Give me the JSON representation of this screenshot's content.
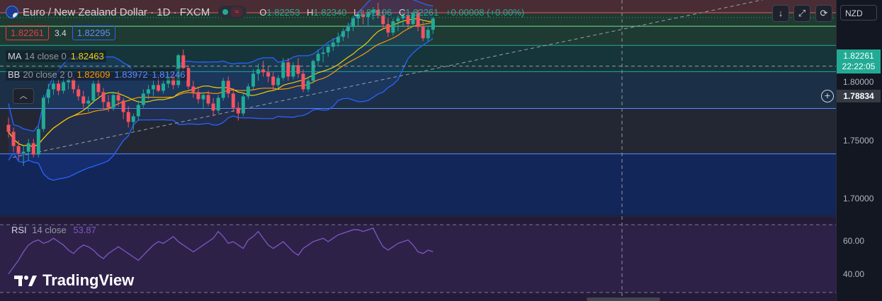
{
  "header": {
    "symbol_title": "Euro / New Zealand Dollar · 1D · FXCM",
    "ohlc": {
      "o_label": "O",
      "o": "1.82253",
      "h_label": "H",
      "h": "1.82340",
      "l_label": "L",
      "l": "1.82106",
      "c_label": "C",
      "c": "1.82261",
      "change": "+0.00008 (+0.00%)"
    },
    "sell_price": "1.82261",
    "spread": "3.4",
    "buy_price": "1.82295",
    "market_status_icon": "market-open-dot-icon",
    "replay_icon": "replay-icon"
  },
  "indicators": {
    "ma": {
      "name": "MA",
      "params": "14 close 0",
      "value": "1.82463"
    },
    "bb": {
      "name": "BB",
      "params": "20 close 2 0",
      "basis": "1.82609",
      "upper": "1.83972",
      "lower": "1.81246"
    },
    "rsi": {
      "name": "RSI",
      "params": "14 close",
      "value": "53.87"
    }
  },
  "right_panel": {
    "currency": "NZD",
    "last_price": "1.82261",
    "countdown": "22:22:05",
    "crosshair_price": "1.78834",
    "price_axis": [
      "1.80000",
      "1.75000",
      "1.70000"
    ],
    "rsi_axis": [
      "60.00",
      "40.00"
    ]
  },
  "toolbar_icons": [
    "down-arrow-icon",
    "fullscreen-icon",
    "screenshot-icon"
  ],
  "brand": "TradingView",
  "colors": {
    "up": "#22ab94",
    "down": "#f7525f",
    "ma": "#f0d000",
    "bb_basis": "#ff9800",
    "bb_band": "#2962ff",
    "rsi": "#7e57c2",
    "bg": "#131722"
  },
  "chart_data": {
    "type": "candlestick",
    "y_range": [
      1.683,
      1.835
    ],
    "ohlc": [
      [
        1.747,
        1.752,
        1.738,
        1.742
      ],
      [
        1.742,
        1.745,
        1.728,
        1.732
      ],
      [
        1.732,
        1.736,
        1.722,
        1.727
      ],
      [
        1.727,
        1.733,
        1.718,
        1.728
      ],
      [
        1.728,
        1.737,
        1.722,
        1.734
      ],
      [
        1.734,
        1.737,
        1.724,
        1.726
      ],
      [
        1.726,
        1.746,
        1.724,
        1.744
      ],
      [
        1.744,
        1.768,
        1.742,
        1.766
      ],
      [
        1.766,
        1.776,
        1.762,
        1.772
      ],
      [
        1.772,
        1.779,
        1.768,
        1.776
      ],
      [
        1.776,
        1.779,
        1.768,
        1.771
      ],
      [
        1.771,
        1.78,
        1.769,
        1.777
      ],
      [
        1.777,
        1.785,
        1.772,
        1.779
      ],
      [
        1.779,
        1.781,
        1.769,
        1.772
      ],
      [
        1.772,
        1.775,
        1.764,
        1.767
      ],
      [
        1.767,
        1.771,
        1.759,
        1.762
      ],
      [
        1.762,
        1.767,
        1.756,
        1.764
      ],
      [
        1.764,
        1.778,
        1.762,
        1.776
      ],
      [
        1.776,
        1.779,
        1.767,
        1.77
      ],
      [
        1.77,
        1.773,
        1.758,
        1.763
      ],
      [
        1.763,
        1.768,
        1.756,
        1.759
      ],
      [
        1.759,
        1.77,
        1.757,
        1.768
      ],
      [
        1.768,
        1.771,
        1.76,
        1.764
      ],
      [
        1.764,
        1.766,
        1.751,
        1.756
      ],
      [
        1.756,
        1.76,
        1.745,
        1.749
      ],
      [
        1.749,
        1.755,
        1.743,
        1.753
      ],
      [
        1.753,
        1.764,
        1.75,
        1.761
      ],
      [
        1.761,
        1.772,
        1.759,
        1.769
      ],
      [
        1.769,
        1.775,
        1.765,
        1.772
      ],
      [
        1.772,
        1.778,
        1.767,
        1.775
      ],
      [
        1.775,
        1.78,
        1.77,
        1.771
      ],
      [
        1.771,
        1.778,
        1.769,
        1.776
      ],
      [
        1.776,
        1.784,
        1.773,
        1.781
      ],
      [
        1.781,
        1.785,
        1.772,
        1.775
      ],
      [
        1.775,
        1.797,
        1.773,
        1.796
      ],
      [
        1.796,
        1.8,
        1.784,
        1.787
      ],
      [
        1.787,
        1.789,
        1.772,
        1.774
      ],
      [
        1.774,
        1.778,
        1.766,
        1.77
      ],
      [
        1.77,
        1.774,
        1.762,
        1.765
      ],
      [
        1.765,
        1.77,
        1.758,
        1.768
      ],
      [
        1.768,
        1.771,
        1.76,
        1.762
      ],
      [
        1.762,
        1.766,
        1.753,
        1.757
      ],
      [
        1.757,
        1.768,
        1.755,
        1.766
      ],
      [
        1.766,
        1.78,
        1.764,
        1.778
      ],
      [
        1.778,
        1.781,
        1.766,
        1.769
      ],
      [
        1.769,
        1.773,
        1.756,
        1.759
      ],
      [
        1.759,
        1.763,
        1.75,
        1.755
      ],
      [
        1.755,
        1.77,
        1.753,
        1.767
      ],
      [
        1.767,
        1.776,
        1.765,
        1.774
      ],
      [
        1.774,
        1.786,
        1.772,
        1.783
      ],
      [
        1.783,
        1.79,
        1.778,
        1.786
      ],
      [
        1.786,
        1.792,
        1.781,
        1.784
      ],
      [
        1.784,
        1.788,
        1.777,
        1.781
      ],
      [
        1.781,
        1.784,
        1.771,
        1.775
      ],
      [
        1.775,
        1.782,
        1.773,
        1.78
      ],
      [
        1.78,
        1.794,
        1.778,
        1.791
      ],
      [
        1.791,
        1.794,
        1.778,
        1.781
      ],
      [
        1.781,
        1.791,
        1.779,
        1.789
      ],
      [
        1.789,
        1.794,
        1.78,
        1.783
      ],
      [
        1.783,
        1.786,
        1.77,
        1.772
      ],
      [
        1.772,
        1.781,
        1.77,
        1.778
      ],
      [
        1.778,
        1.793,
        1.776,
        1.792
      ],
      [
        1.792,
        1.8,
        1.788,
        1.797
      ],
      [
        1.797,
        1.801,
        1.791,
        1.798
      ],
      [
        1.798,
        1.804,
        1.795,
        1.802
      ],
      [
        1.802,
        1.808,
        1.799,
        1.805
      ],
      [
        1.805,
        1.812,
        1.802,
        1.809
      ],
      [
        1.809,
        1.815,
        1.806,
        1.813
      ],
      [
        1.813,
        1.819,
        1.808,
        1.816
      ],
      [
        1.816,
        1.824,
        1.813,
        1.822
      ],
      [
        1.822,
        1.827,
        1.817,
        1.825
      ],
      [
        1.825,
        1.828,
        1.818,
        1.823
      ],
      [
        1.823,
        1.827,
        1.817,
        1.826
      ],
      [
        1.826,
        1.83,
        1.821,
        1.828
      ],
      [
        1.828,
        1.833,
        1.822,
        1.824
      ],
      [
        1.824,
        1.828,
        1.814,
        1.818
      ],
      [
        1.818,
        1.822,
        1.809,
        1.812
      ],
      [
        1.812,
        1.822,
        1.81,
        1.82
      ],
      [
        1.82,
        1.824,
        1.813,
        1.822
      ],
      [
        1.822,
        1.826,
        1.817,
        1.824
      ],
      [
        1.824,
        1.826,
        1.815,
        1.818
      ],
      [
        1.818,
        1.827,
        1.816,
        1.826
      ],
      [
        1.826,
        1.828,
        1.813,
        1.816
      ],
      [
        1.816,
        1.82,
        1.806,
        1.808
      ],
      [
        1.808,
        1.816,
        1.806,
        1.814
      ],
      [
        1.814,
        1.823,
        1.811,
        1.822
      ]
    ],
    "rsi": [
      41,
      45,
      49,
      54,
      58,
      60,
      61,
      59,
      60,
      62,
      60,
      58,
      55,
      53,
      56,
      58,
      57,
      55,
      52,
      50,
      53,
      55,
      57,
      55,
      53,
      51,
      49,
      52,
      55,
      58,
      60,
      59,
      61,
      63,
      60,
      58,
      56,
      54,
      56,
      58,
      60,
      62,
      66,
      63,
      59,
      60,
      58,
      56,
      61,
      63,
      66,
      62,
      58,
      56,
      58,
      60,
      57,
      54,
      52,
      56,
      58,
      60,
      61,
      62,
      60,
      62,
      64,
      65,
      66,
      67,
      67,
      66,
      67,
      68,
      62,
      57,
      55,
      57,
      59,
      60,
      61,
      58,
      54,
      53,
      55,
      54
    ],
    "levels": [
      1.8,
      1.75,
      1.7
    ],
    "crosshair": {
      "price": 1.78834
    },
    "last_close": 1.82261,
    "rsi_range": [
      25,
      75
    ],
    "rsi_bands": [
      70,
      30
    ]
  }
}
